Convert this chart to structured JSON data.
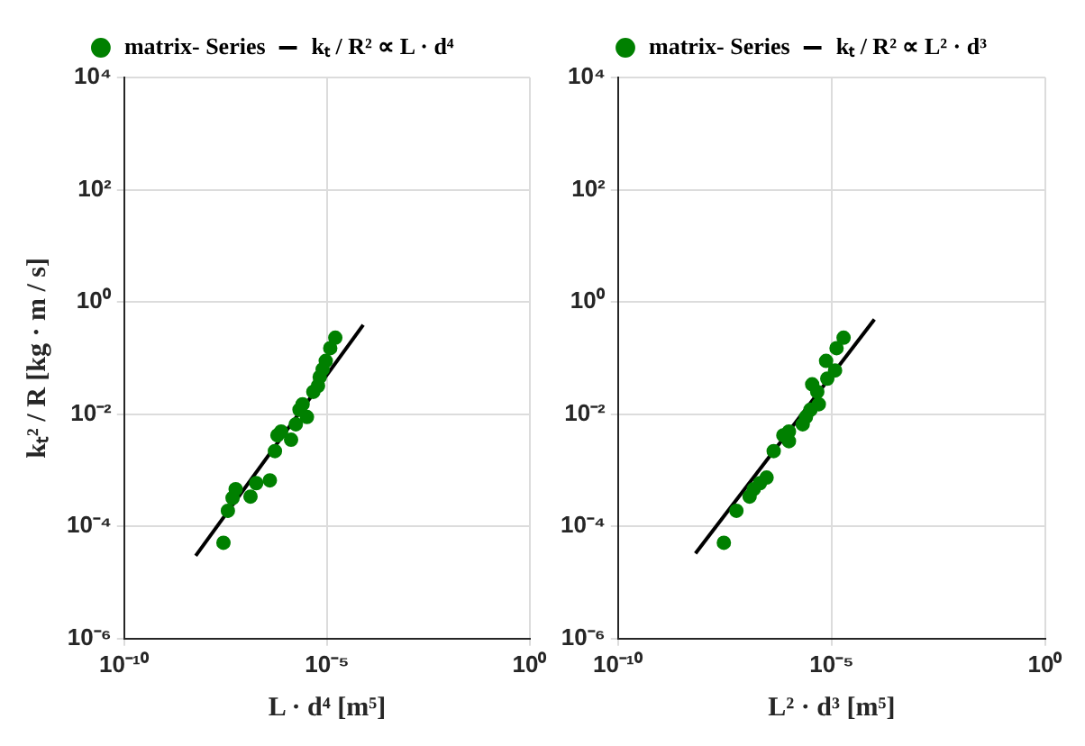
{
  "chart_data": [
    {
      "type": "scatter",
      "xlabel": "L · d⁴ [m⁵]",
      "ylabel": "kₜ² / R [kg · m / s]",
      "log": "xy",
      "grid": true,
      "legend": "top",
      "xlim": [
        1e-10,
        1
      ],
      "ylim": [
        1e-06,
        10000
      ],
      "xticks": [
        {
          "value": 1e-10,
          "label": "10⁻¹⁰"
        },
        {
          "value": 1e-05,
          "label": "10⁻⁵"
        },
        {
          "value": 1,
          "label": "10⁰"
        }
      ],
      "yticks": [
        {
          "value": 1e-06,
          "label": "10⁻⁶"
        },
        {
          "value": 0.0001,
          "label": "10⁻⁴"
        },
        {
          "value": 0.01,
          "label": "10⁻²"
        },
        {
          "value": 1,
          "label": "10⁰"
        },
        {
          "value": 100,
          "label": "10²"
        },
        {
          "value": 10000,
          "label": "10⁴"
        }
      ],
      "series": [
        {
          "name": "matrix- Series",
          "color": "#008000",
          "marker": "circle",
          "x": [
            1.6e-05,
            1.2e-05,
            9.3e-06,
            7.8e-06,
            6.6e-06,
            6e-06,
            4.6e-06,
            2.5e-06,
            2.1e-06,
            3.2e-06,
            1.7e-06,
            7.4e-07,
            6e-07,
            1.3e-06,
            5.2e-07,
            3.9e-07,
            1.8e-07,
            1.3e-07,
            5.6e-08,
            4.7e-08,
            3.6e-08,
            2.8e-08
          ],
          "values": [
            0.23,
            0.15,
            0.089,
            0.063,
            0.046,
            0.032,
            0.025,
            0.015,
            0.012,
            0.0089,
            0.0066,
            0.0049,
            0.0042,
            0.0035,
            0.0022,
            0.00066,
            0.00059,
            0.00034,
            0.00046,
            0.00032,
            0.00019,
            5.1e-05
          ]
        },
        {
          "name": "kₜ / R² ∝ L · d⁴",
          "type": "line",
          "color": "#000000",
          "x": [
            5.8e-09,
            7.8e-05
          ],
          "values": [
            3e-05,
            0.39
          ]
        }
      ]
    },
    {
      "type": "scatter",
      "xlabel": "L² · d³ [m⁵]",
      "log": "xy",
      "grid": true,
      "legend": "top",
      "xlim": [
        1e-10,
        1
      ],
      "ylim": [
        1e-06,
        10000
      ],
      "xticks": [
        {
          "value": 1e-10,
          "label": "10⁻¹⁰"
        },
        {
          "value": 1e-05,
          "label": "10⁻⁵"
        },
        {
          "value": 1,
          "label": "10⁰"
        }
      ],
      "yticks": [
        {
          "value": 1e-06,
          "label": "10⁻⁶"
        },
        {
          "value": 0.0001,
          "label": "10⁻⁴"
        },
        {
          "value": 0.01,
          "label": "10⁻²"
        },
        {
          "value": 1,
          "label": "10⁰"
        },
        {
          "value": 100,
          "label": "10²"
        },
        {
          "value": 10000,
          "label": "10⁴"
        }
      ],
      "series": [
        {
          "name": "matrix- Series",
          "color": "#008000",
          "marker": "circle",
          "x": [
            1.9e-05,
            1.3e-05,
            7.4e-06,
            1.2e-05,
            7.9e-06,
            3.5e-06,
            4.6e-06,
            5e-06,
            3.2e-06,
            2.5e-06,
            2.1e-06,
            1e-06,
            7.4e-07,
            1e-06,
            4.4e-07,
            3e-07,
            2.1e-07,
            1.5e-07,
            1.2e-07,
            5.9e-08,
            3e-08
          ],
          "values": [
            0.23,
            0.15,
            0.089,
            0.06,
            0.043,
            0.034,
            0.025,
            0.015,
            0.012,
            0.0089,
            0.0066,
            0.0049,
            0.0042,
            0.0033,
            0.0022,
            0.00074,
            0.00059,
            0.00046,
            0.00034,
            0.00019,
            5.1e-05
          ]
        },
        {
          "name": "kₜ / R² ∝ L² · d³",
          "type": "line",
          "color": "#000000",
          "x": [
            6.5e-09,
            0.0001
          ],
          "values": [
            3.3e-05,
            0.49
          ]
        }
      ]
    }
  ]
}
